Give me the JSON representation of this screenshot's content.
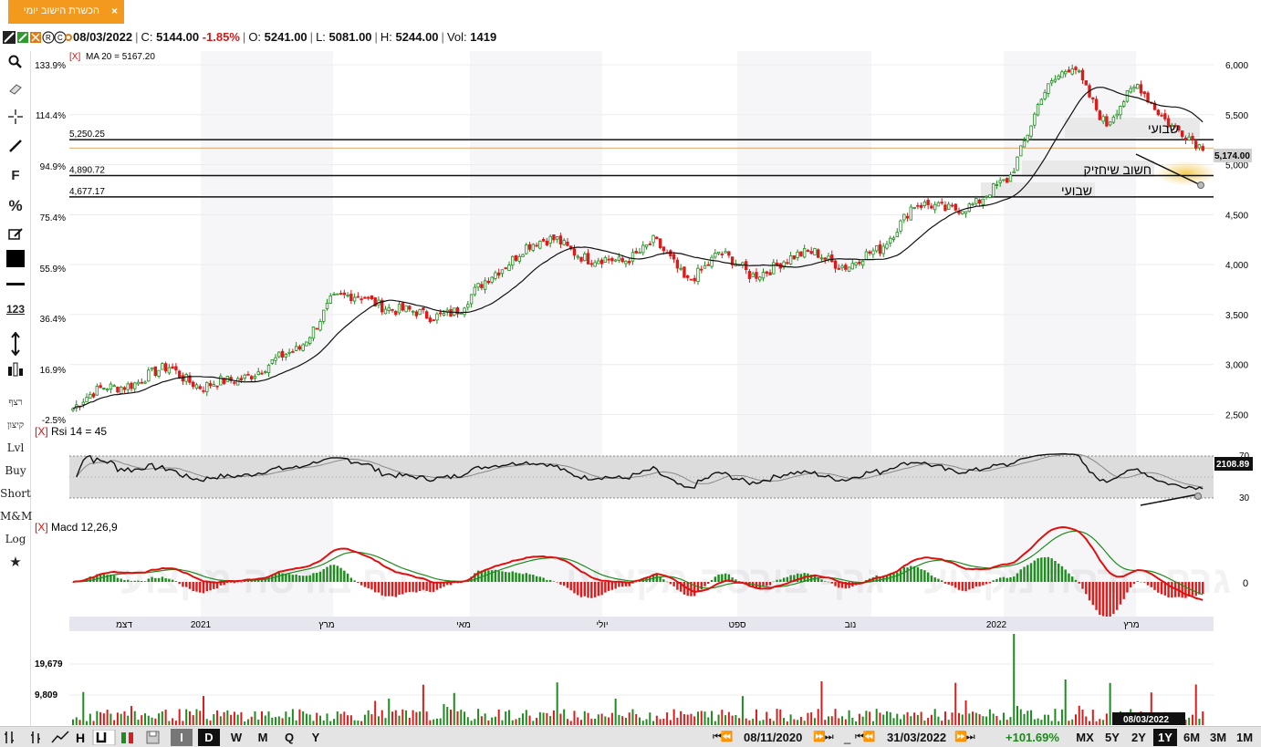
{
  "tab": {
    "label": "הכשרת הישוב יומי",
    "close": "×"
  },
  "header": {
    "date": "08/03/2022",
    "close_label": "C:",
    "close": "5144.00",
    "change": "-1.85%",
    "open_label": "O:",
    "open": "5241.00",
    "low_label": "L:",
    "low": "5081.00",
    "high_label": "H:",
    "high": "5244.00",
    "vol_label": "Vol:",
    "vol": "1419"
  },
  "sidebar": {
    "tools": [
      "search-icon",
      "eraser-icon",
      "crosshair-icon",
      "line-icon",
      "fibonacci-icon",
      "percent-icon",
      "note-icon",
      "color-swatch-icon",
      "horizontal-line-icon",
      "numbers-icon",
      "vertical-arrow-icon",
      "candles-icon"
    ],
    "labels": {
      "f": "F",
      "percent": "%",
      "num": "123",
      "ratzef": "רצף",
      "kitzon": "קיצון",
      "lvl": "Lvl",
      "buy": "Buy",
      "short": "Short",
      "mm": "M&M",
      "log": "Log"
    }
  },
  "colors": {
    "up": "#1e8c1e",
    "down": "#d91c1c",
    "ma": "#111111",
    "macd_line": "#e01010",
    "signal_line": "#1e8c1e",
    "band": "#dcdcdc",
    "tab": "#f39a1e",
    "highlight": "#f5d27a"
  },
  "price_panel": {
    "ma_label": "MA 20 = 5167.20",
    "close_tag": "5,174.00",
    "y_ticks": [
      "6,000",
      "5,500",
      "5,000",
      "4,500",
      "4,000",
      "3,500",
      "3,000",
      "2,500"
    ],
    "pct_ticks": [
      "133.9%",
      "114.4%",
      "94.9%",
      "75.4%",
      "55.9%",
      "36.4%",
      "16.9%",
      "-2.5%"
    ],
    "h_lines": [
      {
        "label": "5,250.25",
        "value": 5250.25
      },
      {
        "label": "4,890.72",
        "value": 4890.72
      },
      {
        "label": "4,677.17",
        "value": 4677.17
      }
    ],
    "annotations": [
      {
        "text": "שבועי"
      },
      {
        "text": "חשוב שיחזיק"
      },
      {
        "text": "שבועי"
      }
    ]
  },
  "rsi_panel": {
    "label": "Rsi 14 = 45",
    "tag": "2108.89",
    "ticks": [
      "70",
      "30"
    ]
  },
  "macd_panel": {
    "label": "Macd 12,26,9",
    "zero": "0",
    "watermark": "גרף בורסה מקצועי"
  },
  "time_axis": [
    "דצמ",
    "2021",
    "מרץ",
    "מאי",
    "יולי",
    "ספט",
    "נוב",
    "2022",
    "מרץ"
  ],
  "volume_panel": {
    "ticks": [
      "19,679",
      "9,809"
    ],
    "date_tag": "08/03/2022"
  },
  "bottom_bar": {
    "intervals": [
      "I",
      "D",
      "W",
      "M",
      "Q",
      "Y"
    ],
    "from_date": "08/11/2020",
    "to_date": "31/03/2022",
    "dash": "_",
    "change": "+101.69%",
    "ranges": [
      "MX",
      "5Y",
      "2Y",
      "1Y",
      "6M",
      "3M",
      "1M"
    ],
    "nav_back": "⏮⏪",
    "nav_fwd": "⏩⏭"
  },
  "chart_data": {
    "type": "candlestick",
    "x_range": [
      "08/11/2020",
      "08/03/2022"
    ],
    "ylim": [
      2450,
      6100
    ],
    "close_series": [
      {
        "date": "2020-11-08",
        "close": 2560
      },
      {
        "date": "2020-11-22",
        "close": 2780
      },
      {
        "date": "2020-12-06",
        "close": 2820
      },
      {
        "date": "2020-12-20",
        "close": 2980
      },
      {
        "date": "2021-01-03",
        "close": 2770
      },
      {
        "date": "2021-01-17",
        "close": 2840
      },
      {
        "date": "2021-01-31",
        "close": 2990
      },
      {
        "date": "2021-02-14",
        "close": 3150
      },
      {
        "date": "2021-02-28",
        "close": 3650
      },
      {
        "date": "2021-03-14",
        "close": 3680
      },
      {
        "date": "2021-03-28",
        "close": 3550
      },
      {
        "date": "2021-04-11",
        "close": 3480
      },
      {
        "date": "2021-04-25",
        "close": 3560
      },
      {
        "date": "2021-05-09",
        "close": 3900
      },
      {
        "date": "2021-05-23",
        "close": 4180
      },
      {
        "date": "2021-06-06",
        "close": 4250
      },
      {
        "date": "2021-06-20",
        "close": 4050
      },
      {
        "date": "2021-07-04",
        "close": 4020
      },
      {
        "date": "2021-07-18",
        "close": 4250
      },
      {
        "date": "2021-08-01",
        "close": 3820
      },
      {
        "date": "2021-08-15",
        "close": 4130
      },
      {
        "date": "2021-08-29",
        "close": 3880
      },
      {
        "date": "2021-09-12",
        "close": 4040
      },
      {
        "date": "2021-09-26",
        "close": 4120
      },
      {
        "date": "2021-10-10",
        "close": 3980
      },
      {
        "date": "2021-10-24",
        "close": 4150
      },
      {
        "date": "2021-11-07",
        "close": 4600
      },
      {
        "date": "2021-11-21",
        "close": 4550
      },
      {
        "date": "2021-12-05",
        "close": 4620
      },
      {
        "date": "2021-12-19",
        "close": 4850
      },
      {
        "date": "2022-01-02",
        "close": 5700
      },
      {
        "date": "2022-01-16",
        "close": 6000
      },
      {
        "date": "2022-01-30",
        "close": 5400
      },
      {
        "date": "2022-02-13",
        "close": 5800
      },
      {
        "date": "2022-02-27",
        "close": 5400
      },
      {
        "date": "2022-03-08",
        "close": 5144
      }
    ],
    "ma": {
      "name": "MA 20",
      "last": 5167.2
    },
    "rsi": {
      "period": 14,
      "last": 45,
      "levels": [
        70,
        30
      ]
    },
    "macd": {
      "fast": 12,
      "slow": 26,
      "signal": 9
    }
  }
}
